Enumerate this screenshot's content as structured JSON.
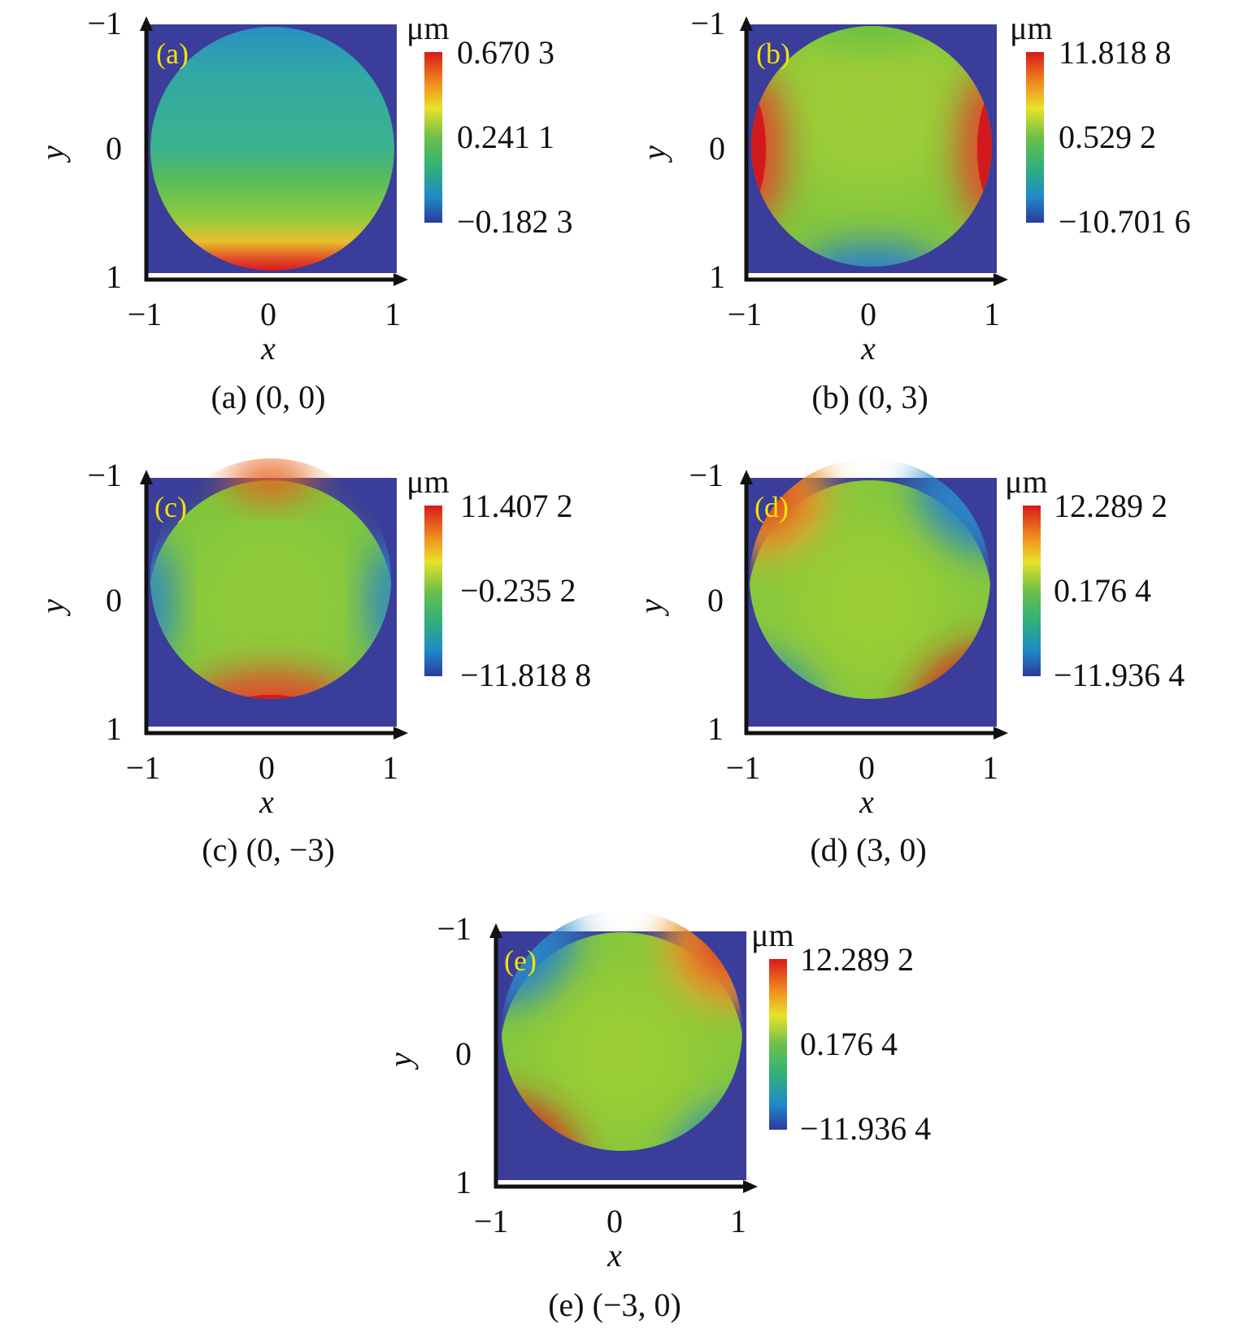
{
  "chart_data": [
    {
      "type": "heatmap",
      "panel_letter": "(a)",
      "caption": "(a) (0, 0)",
      "xlabel": "x",
      "ylabel": "y",
      "x_ticks": [
        "−1",
        "0",
        "1"
      ],
      "y_ticks": [
        "−1",
        "0",
        "1"
      ],
      "xlim": [
        -1,
        1
      ],
      "ylim": [
        -1,
        1
      ],
      "y_axis_inverted": true,
      "colorbar": {
        "unit": "μm",
        "max": "0.670 3",
        "mid": "0.241 1",
        "min": "−0.182 3"
      },
      "colors": {
        "background": "#3a3d9a",
        "high": "#d9262b",
        "mid": "#7ac943",
        "low": "#2b3a9b"
      }
    },
    {
      "type": "heatmap",
      "panel_letter": "(b)",
      "caption": "(b) (0, 3)",
      "xlabel": "x",
      "ylabel": "y",
      "x_ticks": [
        "−1",
        "0",
        "1"
      ],
      "y_ticks": [
        "−1",
        "0",
        "1"
      ],
      "xlim": [
        -1,
        1
      ],
      "ylim": [
        -1,
        1
      ],
      "y_axis_inverted": true,
      "colorbar": {
        "unit": "μm",
        "max": "11.818 8",
        "mid": "0.529 2",
        "min": "−10.701 6"
      },
      "colors": {
        "background": "#3a3d9a",
        "high": "#d9262b",
        "mid": "#7ac943",
        "low": "#2b3a9b"
      }
    },
    {
      "type": "heatmap",
      "panel_letter": "(c)",
      "caption": "(c) (0, −3)",
      "xlabel": "x",
      "ylabel": "y",
      "x_ticks": [
        "−1",
        "0",
        "1"
      ],
      "y_ticks": [
        "−1",
        "0",
        "1"
      ],
      "xlim": [
        -1,
        1
      ],
      "ylim": [
        -1,
        1
      ],
      "y_axis_inverted": true,
      "colorbar": {
        "unit": "μm",
        "max": "11.407 2",
        "mid": "−0.235 2",
        "min": "−11.818 8"
      },
      "colors": {
        "background": "#3a3d9a",
        "high": "#d9262b",
        "mid": "#7ac943",
        "low": "#2b3a9b"
      }
    },
    {
      "type": "heatmap",
      "panel_letter": "(d)",
      "caption": "(d) (3, 0)",
      "xlabel": "x",
      "ylabel": "y",
      "x_ticks": [
        "−1",
        "0",
        "1"
      ],
      "y_ticks": [
        "−1",
        "0",
        "1"
      ],
      "xlim": [
        -1,
        1
      ],
      "ylim": [
        -1,
        1
      ],
      "y_axis_inverted": true,
      "colorbar": {
        "unit": "μm",
        "max": "12.289 2",
        "mid": "0.176 4",
        "min": "−11.936 4"
      },
      "colors": {
        "background": "#3a3d9a",
        "high": "#d9262b",
        "mid": "#7ac943",
        "low": "#2b3a9b"
      }
    },
    {
      "type": "heatmap",
      "panel_letter": "(e)",
      "caption": "(e) (−3, 0)",
      "xlabel": "x",
      "ylabel": "y",
      "x_ticks": [
        "−1",
        "0",
        "1"
      ],
      "y_ticks": [
        "−1",
        "0",
        "1"
      ],
      "xlim": [
        -1,
        1
      ],
      "ylim": [
        -1,
        1
      ],
      "y_axis_inverted": true,
      "colorbar": {
        "unit": "μm",
        "max": "12.289 2",
        "mid": "0.176 4",
        "min": "−11.936 4"
      },
      "colors": {
        "background": "#3a3d9a",
        "high": "#d9262b",
        "mid": "#7ac943",
        "low": "#2b3a9b"
      }
    }
  ]
}
